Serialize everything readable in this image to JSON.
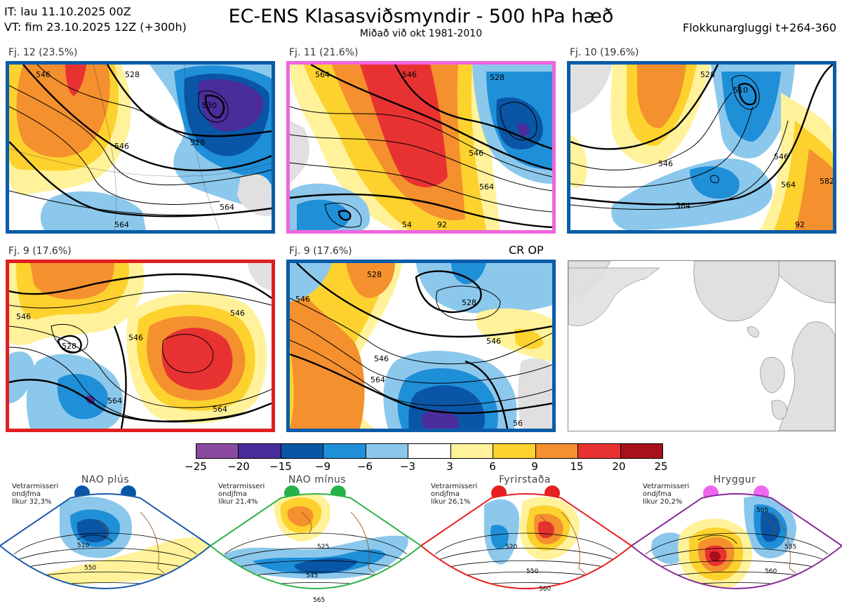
{
  "header": {
    "it_line": "IT: lau 11.10.2025 00Z",
    "vt_line": "VT: fim 23.10.2025 12Z  (+300h)",
    "title": "EC-ENS Klasasviðsmyndir - 500 hPa hæð",
    "subtitle": "Miðað við okt 1981-2010",
    "window": "Flokkunargluggi t+264-360"
  },
  "clusters": [
    {
      "label": "Fj. 12 (23.5%)",
      "border_color": "#0a5ca8",
      "contours": [
        "546",
        "528",
        "530",
        "528",
        "546",
        "564",
        "564"
      ]
    },
    {
      "label": "Fj. 11 (21.6%)",
      "border_color": "#ee66dd",
      "contours": [
        "564",
        "546",
        "528",
        "546",
        "564",
        "54",
        "92"
      ]
    },
    {
      "label": "Fj. 10 (19.6%)",
      "border_color": "#0a5ca8",
      "contours": [
        "510",
        "528",
        "546",
        "546",
        "564",
        "564",
        "582",
        "92"
      ]
    },
    {
      "label": "Fj. 9 (17.6%)",
      "border_color": "#e02020",
      "contours": [
        "546",
        "528",
        "546",
        "546",
        "564",
        "564"
      ]
    },
    {
      "label": "Fj. 9 (17.6%)",
      "border_color": "#0a5ca8",
      "contours": [
        "546",
        "528",
        "528",
        "546",
        "546",
        "564",
        "56"
      ]
    }
  ],
  "control_label": "CR OP",
  "colorbar": {
    "labels": [
      "−25",
      "−20",
      "−15",
      "−9",
      "−6",
      "−3",
      "3",
      "6",
      "9",
      "15",
      "20",
      "25"
    ],
    "colors": [
      "#8a4aa0",
      "#4a2d9a",
      "#0a56a6",
      "#1f8fd8",
      "#8cc8ec",
      "#ffffff",
      "#fff29a",
      "#fdd22e",
      "#f4902e",
      "#e83232",
      "#a8101a"
    ]
  },
  "regimes": [
    {
      "title": "NAO plús",
      "dot_color": "#0a56a6",
      "border_color": "#1a5aa6",
      "text": [
        "Vetrarmisseri",
        "ondjfma",
        "líkur 32,3%"
      ],
      "contours": [
        "510",
        "550"
      ]
    },
    {
      "title": "NAO mínus",
      "dot_color": "#26b24a",
      "border_color": "#2eb24a",
      "text": [
        "Vetrarmisseri",
        "ondjfma",
        "líkur 21,4%"
      ],
      "contours": [
        "525",
        "545",
        "565"
      ]
    },
    {
      "title": "Fyrirstaða",
      "dot_color": "#e62020",
      "border_color": "#e62020",
      "text": [
        "Vetrarmisseri",
        "ondjfma",
        "líkur 26,1%"
      ],
      "contours": [
        "520",
        "550",
        "560"
      ]
    },
    {
      "title": "Hryggur",
      "dot_color": "#ee66ee",
      "border_color": "#8a2a9a",
      "text": [
        "Vetrarmisseri",
        "ondjfma",
        "líkur 20,2%"
      ],
      "contours": [
        "505",
        "535",
        "560"
      ]
    }
  ]
}
